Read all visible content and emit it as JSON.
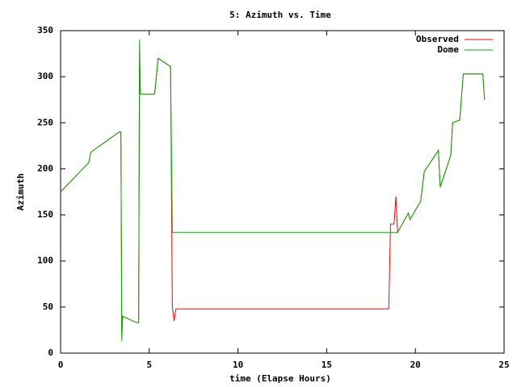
{
  "chart_data": {
    "type": "line",
    "title": "5: Azimuth vs. Time",
    "x_label": "time (Elapse Hours)",
    "y_label": "Azimuth",
    "x": [
      0,
      1.6,
      1.7,
      3.3,
      3.4,
      3.45,
      3.5,
      4.3,
      4.4,
      4.45,
      4.5,
      5.3,
      5.5,
      6.2,
      6.3,
      6.4,
      6.5,
      18.5,
      18.6,
      18.8,
      18.9,
      19.0,
      19.6,
      19.7,
      20.3,
      20.5,
      21.3,
      21.4,
      22.0,
      22.1,
      22.5,
      22.7,
      23.8,
      23.9
    ],
    "series": [
      {
        "name": "Observed",
        "color": "#ff0000",
        "values": [
          175,
          207,
          218,
          240,
          240,
          20,
          40,
          33,
          33,
          325,
          281,
          281,
          320,
          311,
          50,
          35,
          48,
          48,
          140,
          140,
          170,
          131,
          152,
          145,
          165,
          197,
          220,
          180,
          215,
          250,
          253,
          303,
          303,
          275
        ]
      },
      {
        "name": "Dome",
        "color": "#00b000",
        "values": [
          175,
          207,
          218,
          240,
          240,
          13,
          40,
          33,
          33,
          340,
          281,
          281,
          320,
          311,
          131,
          131,
          131,
          131,
          131,
          131,
          131,
          131,
          152,
          145,
          165,
          197,
          220,
          180,
          215,
          250,
          253,
          303,
          303,
          275
        ]
      }
    ],
    "xlim": [
      0,
      25
    ],
    "xticks": [
      0,
      5,
      10,
      15,
      20,
      25
    ],
    "ylim": [
      0,
      350
    ],
    "yticks": [
      0,
      50,
      100,
      150,
      200,
      250,
      300,
      350
    ],
    "legend": "top-right"
  }
}
